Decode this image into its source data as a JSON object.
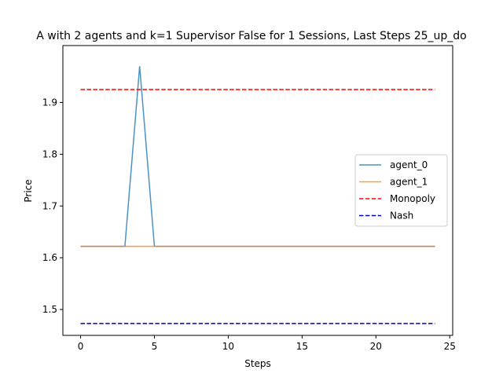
{
  "chart_data": {
    "type": "line",
    "title": "A with 2 agents and k=1 Supervisor False for 1 Sessions, Last Steps 25_up_do",
    "xlabel": "Steps",
    "ylabel": "Price",
    "xlim": [
      -1.2,
      25.2
    ],
    "ylim": [
      1.45,
      2.01
    ],
    "xticks": [
      0,
      5,
      10,
      15,
      20,
      25
    ],
    "yticks": [
      1.5,
      1.6,
      1.7,
      1.8,
      1.9
    ],
    "xtick_labels": [
      "0",
      "5",
      "10",
      "15",
      "20",
      "25"
    ],
    "ytick_labels": [
      "1.5",
      "1.6",
      "1.7",
      "1.8",
      "1.9"
    ],
    "legend_position": "center-right",
    "series": [
      {
        "name": "agent_0",
        "color": "#1f77b4",
        "style": "solid",
        "x": [
          0,
          1,
          2,
          3,
          4,
          5,
          6,
          7,
          8,
          9,
          10,
          11,
          12,
          13,
          14,
          15,
          16,
          17,
          18,
          19,
          20,
          21,
          22,
          23,
          24
        ],
        "y": [
          1.622,
          1.622,
          1.622,
          1.622,
          1.97,
          1.622,
          1.622,
          1.622,
          1.622,
          1.622,
          1.622,
          1.622,
          1.622,
          1.622,
          1.622,
          1.622,
          1.622,
          1.622,
          1.622,
          1.622,
          1.622,
          1.622,
          1.622,
          1.622,
          1.622
        ]
      },
      {
        "name": "agent_1",
        "color": "#ff7f0e",
        "style": "solid",
        "x": [
          0,
          1,
          2,
          3,
          4,
          5,
          6,
          7,
          8,
          9,
          10,
          11,
          12,
          13,
          14,
          15,
          16,
          17,
          18,
          19,
          20,
          21,
          22,
          23,
          24
        ],
        "y": [
          1.622,
          1.622,
          1.622,
          1.622,
          1.622,
          1.622,
          1.622,
          1.622,
          1.622,
          1.622,
          1.622,
          1.622,
          1.622,
          1.622,
          1.622,
          1.622,
          1.622,
          1.622,
          1.622,
          1.622,
          1.622,
          1.622,
          1.622,
          1.622,
          1.622
        ]
      },
      {
        "name": "Monopoly",
        "color": "#ff0000",
        "style": "dashed",
        "x": [
          0,
          24
        ],
        "y": [
          1.925,
          1.925
        ]
      },
      {
        "name": "Nash",
        "color": "#0000cc",
        "style": "dashed",
        "x": [
          0,
          24
        ],
        "y": [
          1.473,
          1.473
        ]
      }
    ]
  }
}
